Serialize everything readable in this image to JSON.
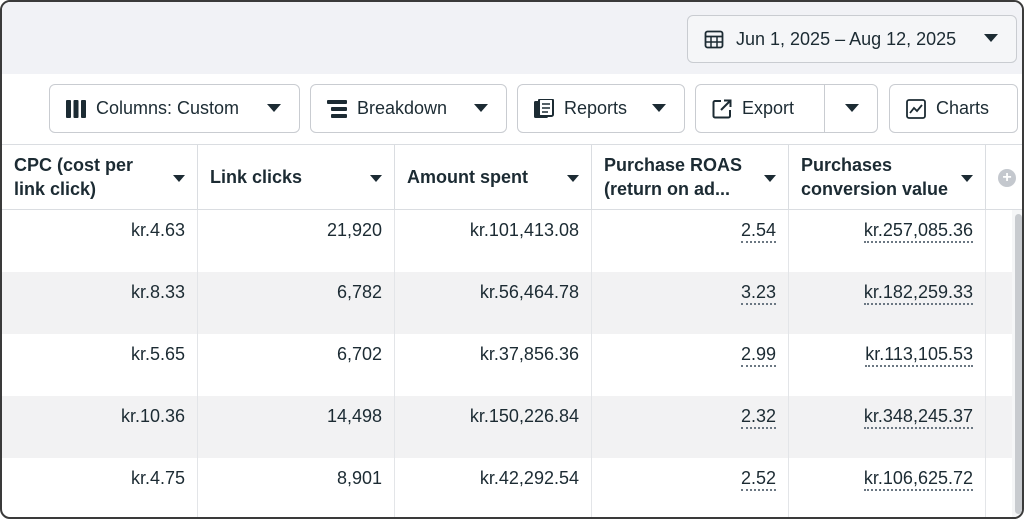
{
  "date_range": {
    "label": "Jun 1, 2025 – Aug 12, 2025",
    "icon": "calendar-icon"
  },
  "toolbar": {
    "columns_label": "Columns: Custom",
    "breakdown_label": "Breakdown",
    "reports_label": "Reports",
    "export_label": "Export",
    "charts_label": "Charts"
  },
  "table": {
    "headers": [
      "CPC (cost per link click)",
      "Link clicks",
      "Amount spent",
      "Purchase ROAS (return on ad...",
      "Purchases conversion value"
    ],
    "rows": [
      {
        "cpc": "kr.4.63",
        "clicks": "21,920",
        "spent": "kr.101,413.08",
        "roas": "2.54",
        "value": "kr.257,085.36"
      },
      {
        "cpc": "kr.8.33",
        "clicks": "6,782",
        "spent": "kr.56,464.78",
        "roas": "3.23",
        "value": "kr.182,259.33"
      },
      {
        "cpc": "kr.5.65",
        "clicks": "6,702",
        "spent": "kr.37,856.36",
        "roas": "2.99",
        "value": "kr.113,105.53"
      },
      {
        "cpc": "kr.10.36",
        "clicks": "14,498",
        "spent": "kr.150,226.84",
        "roas": "2.32",
        "value": "kr.348,245.37"
      },
      {
        "cpc": "kr.4.75",
        "clicks": "8,901",
        "spent": "kr.42,292.54",
        "roas": "2.52",
        "value": "kr.106,625.72"
      }
    ]
  }
}
